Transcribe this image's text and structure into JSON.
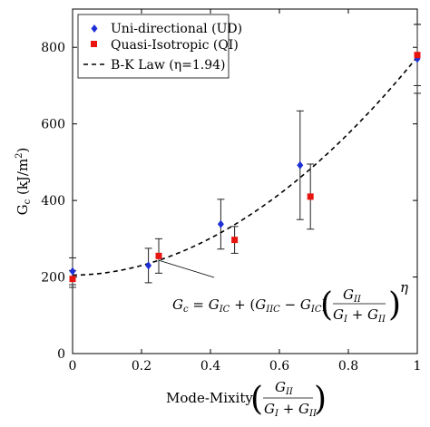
{
  "chart_data": {
    "type": "scatter",
    "xlabel": {
      "prefix": "Mode-Mixity",
      "numerator": "G_II",
      "denominator": "G_I + G_II"
    },
    "ylabel": "G_c (kJ/m^2)",
    "xlim": [
      0,
      1
    ],
    "ylim": [
      0,
      900
    ],
    "xticks": [
      "0",
      "0.2",
      "0.4",
      "0.6",
      "0.8",
      "1"
    ],
    "yticks": [
      "0",
      "200",
      "400",
      "600",
      "800"
    ],
    "grid": false,
    "legend_position": "top-left",
    "series": [
      {
        "name": "Uni-directional (UD)",
        "marker": "diamond",
        "color": "#1f2fd6",
        "points": [
          {
            "x": 0.0,
            "y": 215,
            "err": 35
          },
          {
            "x": 0.22,
            "y": 230,
            "err": 45
          },
          {
            "x": 0.43,
            "y": 338,
            "err": 65
          },
          {
            "x": 0.66,
            "y": 492,
            "err": 142
          },
          {
            "x": 1.0,
            "y": 770,
            "err": 90
          }
        ]
      },
      {
        "name": "Quasi-Isotropic (QI)",
        "marker": "square",
        "color": "#e8140f",
        "points": [
          {
            "x": 0.0,
            "y": 195,
            "err": 22
          },
          {
            "x": 0.25,
            "y": 255,
            "err": 45
          },
          {
            "x": 0.47,
            "y": 297,
            "err": 35
          },
          {
            "x": 0.69,
            "y": 410,
            "err": 85
          },
          {
            "x": 1.0,
            "y": 780,
            "err": 80
          }
        ]
      }
    ],
    "fit": {
      "name": "B-K Law (η=1.94)",
      "style": "dashed",
      "G_IC": 205,
      "G_IIC": 775,
      "eta": 1.94
    },
    "equation": "G_c = G_IC + (G_IIC − G_IC)(G_II / (G_I + G_II))^η"
  }
}
